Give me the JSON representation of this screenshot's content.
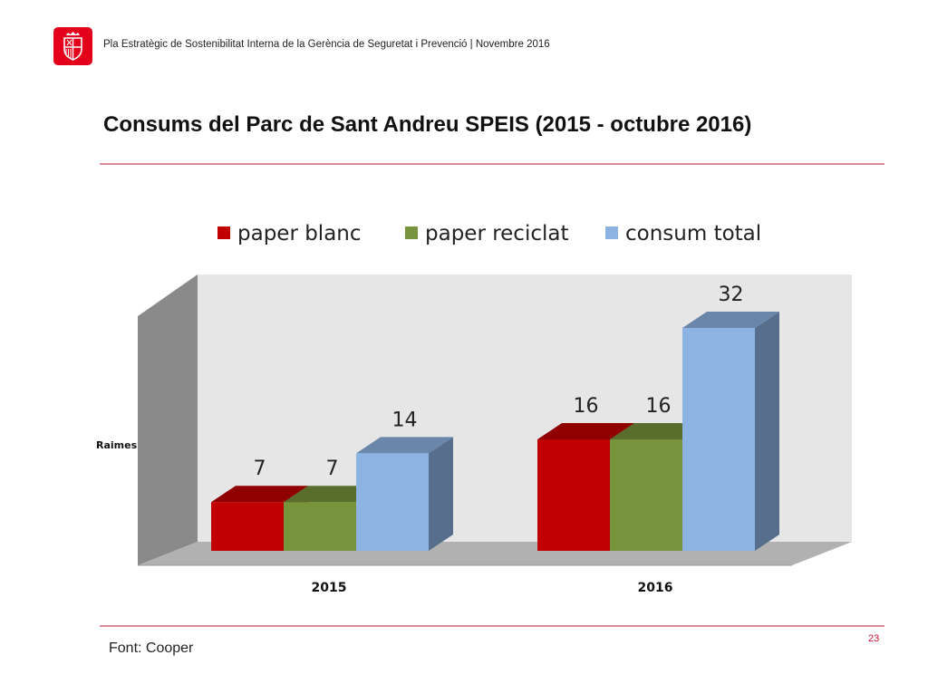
{
  "header": {
    "text": "Pla Estratègic de Sostenibilitat Interna de la Gerència de Seguretat i Prevenció | Novembre 2016",
    "logo_color": "#e2001a"
  },
  "page_title": "Consums del Parc de Sant Andreu SPEIS (2015 - octubre 2016)",
  "footer": {
    "source": "Font: Cooper",
    "page_number": "23"
  },
  "chart_data": {
    "type": "bar",
    "categories": [
      "2015",
      "2016"
    ],
    "series": [
      {
        "name": "paper blanc",
        "values": [
          7,
          16
        ],
        "color": "#c00000"
      },
      {
        "name": "paper reciclat",
        "values": [
          7,
          16
        ],
        "color": "#77933c"
      },
      {
        "name": "consum total",
        "values": [
          14,
          32
        ],
        "color": "#8db3e2"
      }
    ],
    "ylabel": "Raimes",
    "xlabel": "",
    "legend_position": "top",
    "grid": false,
    "three_d": true
  }
}
